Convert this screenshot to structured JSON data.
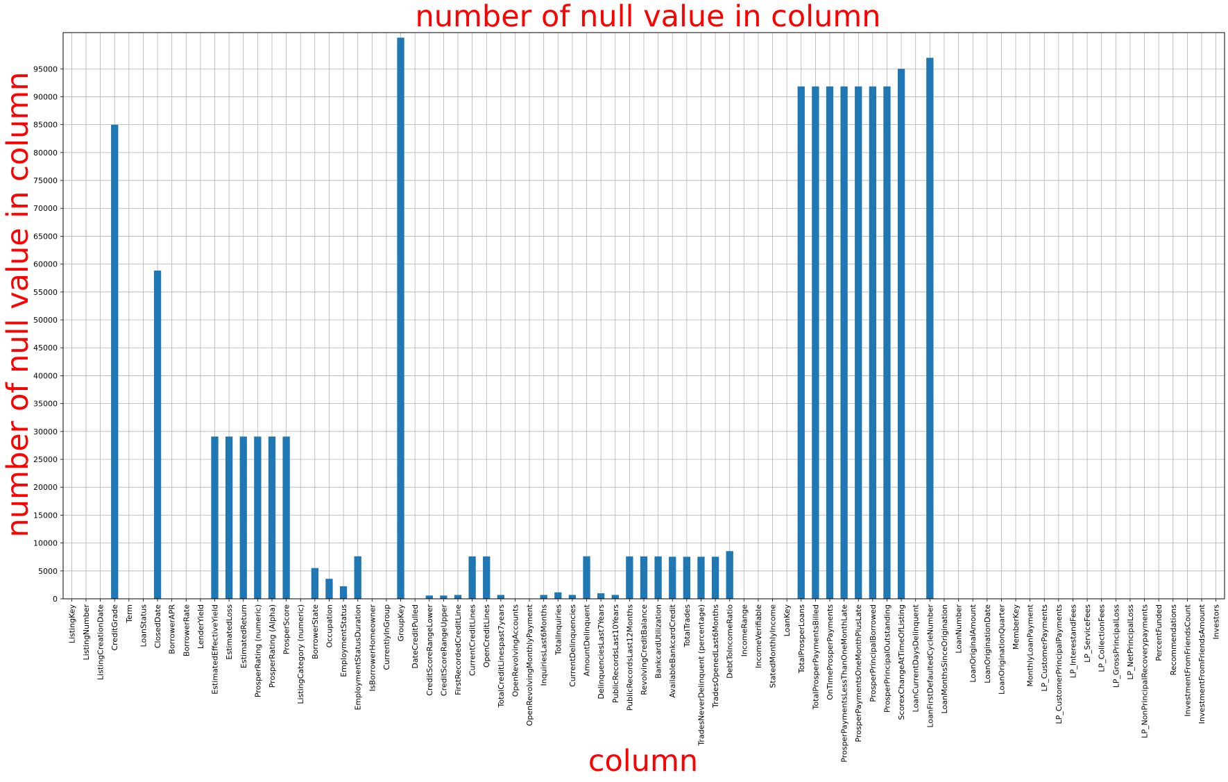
{
  "chart_data": {
    "type": "bar",
    "title": "number of null value in column",
    "xlabel": "column",
    "ylabel": "number of null value in column",
    "ylim": [
      0,
      101500
    ],
    "yticks": [
      0,
      5000,
      10000,
      15000,
      20000,
      25000,
      30000,
      35000,
      40000,
      45000,
      50000,
      55000,
      60000,
      65000,
      70000,
      75000,
      80000,
      85000,
      90000,
      95000
    ],
    "grid": true,
    "bar_color": "#1f77b4",
    "text_color": "#ff0000",
    "categories": [
      "ListingKey",
      "ListingNumber",
      "ListingCreationDate",
      "CreditGrade",
      "Term",
      "LoanStatus",
      "ClosedDate",
      "BorrowerAPR",
      "BorrowerRate",
      "LenderYield",
      "EstimatedEffectiveYield",
      "EstimatedLoss",
      "EstimatedReturn",
      "ProsperRating (numeric)",
      "ProsperRating (Alpha)",
      "ProsperScore",
      "ListingCategory (numeric)",
      "BorrowerState",
      "Occupation",
      "EmploymentStatus",
      "EmploymentStatusDuration",
      "IsBorrowerHomeowner",
      "CurrentlyInGroup",
      "GroupKey",
      "DateCreditPulled",
      "CreditScoreRangeLower",
      "CreditScoreRangeUpper",
      "FirstRecordedCreditLine",
      "CurrentCreditLines",
      "OpenCreditLines",
      "TotalCreditLinespast7years",
      "OpenRevolvingAccounts",
      "OpenRevolvingMonthlyPayment",
      "InquiriesLast6Months",
      "TotalInquiries",
      "CurrentDelinquencies",
      "AmountDelinquent",
      "DelinquenciesLast7Years",
      "PublicRecordsLast10Years",
      "PublicRecordsLast12Months",
      "RevolvingCreditBalance",
      "BankcardUtilization",
      "AvailableBankcardCredit",
      "TotalTrades",
      "TradesNeverDelinquent (percentage)",
      "TradesOpenedLast6Months",
      "DebtToIncomeRatio",
      "IncomeRange",
      "IncomeVerifiable",
      "StatedMonthlyIncome",
      "LoanKey",
      "TotalProsperLoans",
      "TotalProsperPaymentsBilled",
      "OnTimeProsperPayments",
      "ProsperPaymentsLessThanOneMonthLate",
      "ProsperPaymentsOneMonthPlusLate",
      "ProsperPrincipalBorrowed",
      "ProsperPrincipalOutstanding",
      "ScorexChangeAtTimeOfListing",
      "LoanCurrentDaysDelinquent",
      "LoanFirstDefaultedCycleNumber",
      "LoanMonthsSinceOrigination",
      "LoanNumber",
      "LoanOriginalAmount",
      "LoanOriginationDate",
      "LoanOriginationQuarter",
      "MemberKey",
      "MonthlyLoanPayment",
      "LP_CustomerPayments",
      "LP_CustomerPrincipalPayments",
      "LP_InterestandFees",
      "LP_ServiceFees",
      "LP_CollectionFees",
      "LP_GrossPrincipalLoss",
      "LP_NetPrincipalLoss",
      "LP_NonPrincipalRecoverypayments",
      "PercentFunded",
      "Recommendations",
      "InvestmentFromFriendsCount",
      "InvestmentFromFriendsAmount",
      "Investors"
    ],
    "values": [
      0,
      0,
      0,
      84984,
      0,
      0,
      58848,
      25,
      0,
      0,
      29084,
      29084,
      29084,
      29084,
      29084,
      29084,
      0,
      5515,
      3588,
      2255,
      7625,
      0,
      0,
      100596,
      0,
      591,
      591,
      697,
      7604,
      7604,
      697,
      0,
      0,
      697,
      1159,
      697,
      7622,
      990,
      697,
      7604,
      7604,
      7604,
      7544,
      7544,
      7544,
      7544,
      8554,
      0,
      0,
      0,
      0,
      91852,
      91852,
      91852,
      91852,
      91852,
      91852,
      91852,
      95009,
      0,
      96985,
      0,
      0,
      0,
      0,
      0,
      0,
      0,
      0,
      0,
      0,
      0,
      0,
      0,
      0,
      0,
      0,
      0,
      0,
      0,
      0
    ]
  }
}
